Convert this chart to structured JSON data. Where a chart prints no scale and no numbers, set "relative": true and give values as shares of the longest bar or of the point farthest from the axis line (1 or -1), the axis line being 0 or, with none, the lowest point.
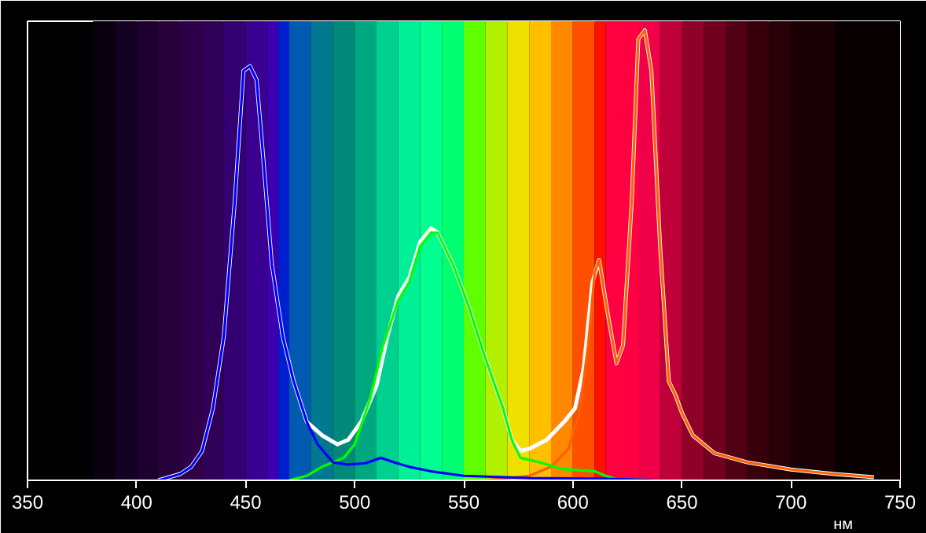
{
  "chart_data": {
    "type": "line",
    "relative": true,
    "xlabel": "нм",
    "xlim": [
      350,
      750
    ],
    "xticks": [
      350,
      400,
      450,
      500,
      550,
      600,
      650,
      700,
      750
    ],
    "grid": false,
    "line_style": "solid",
    "marker": "none",
    "series": [
      {
        "color": "#ffffff",
        "x": [
          410,
          420,
          425,
          430,
          435,
          440,
          445,
          449,
          452,
          455,
          458,
          462,
          467,
          472,
          478,
          485,
          492,
          497,
          503,
          510,
          515,
          520,
          525,
          530,
          535,
          538,
          545,
          552,
          560,
          568,
          572,
          576,
          580,
          588,
          596,
          601,
          605,
          609,
          612,
          616,
          620,
          623,
          627,
          630,
          633,
          636,
          640,
          644,
          647,
          650,
          655,
          665,
          680,
          700,
          720,
          738
        ],
        "values": [
          0,
          0.014,
          0.03,
          0.065,
          0.16,
          0.32,
          0.62,
          0.91,
          0.92,
          0.89,
          0.72,
          0.48,
          0.32,
          0.22,
          0.13,
          0.1,
          0.08,
          0.09,
          0.13,
          0.21,
          0.32,
          0.41,
          0.45,
          0.53,
          0.56,
          0.55,
          0.48,
          0.39,
          0.27,
          0.16,
          0.09,
          0.065,
          0.07,
          0.09,
          0.13,
          0.16,
          0.25,
          0.44,
          0.49,
          0.37,
          0.26,
          0.3,
          0.62,
          0.98,
          1.0,
          0.91,
          0.52,
          0.22,
          0.19,
          0.15,
          0.1,
          0.06,
          0.04,
          0.024,
          0.014,
          0.007
        ]
      },
      {
        "color": "#ff6000",
        "x": [
          560,
          580,
          590,
          598,
          603,
          607,
          610,
          612,
          616,
          620,
          623,
          627,
          630,
          633,
          636,
          640,
          644,
          647,
          650,
          655,
          665,
          680,
          700,
          720,
          738
        ],
        "values": [
          0,
          0.01,
          0.03,
          0.07,
          0.15,
          0.3,
          0.46,
          0.49,
          0.37,
          0.26,
          0.3,
          0.62,
          0.98,
          1.0,
          0.91,
          0.52,
          0.22,
          0.19,
          0.15,
          0.1,
          0.06,
          0.04,
          0.024,
          0.014,
          0.007
        ]
      },
      {
        "color": "#00ff00",
        "x": [
          470,
          478,
          485,
          495,
          500,
          507,
          513,
          520,
          525,
          530,
          535,
          538,
          545,
          552,
          560,
          568,
          572,
          576,
          585,
          595,
          610,
          615,
          620,
          640
        ],
        "values": [
          0,
          0.01,
          0.03,
          0.05,
          0.08,
          0.18,
          0.3,
          0.4,
          0.44,
          0.52,
          0.55,
          0.55,
          0.48,
          0.39,
          0.27,
          0.16,
          0.09,
          0.05,
          0.04,
          0.025,
          0.02,
          0.01,
          0.003,
          0
        ]
      },
      {
        "color": "#0000ff",
        "x": [
          410,
          420,
          425,
          430,
          435,
          440,
          445,
          449,
          452,
          455,
          458,
          462,
          467,
          472,
          478,
          483,
          490,
          497,
          505,
          512,
          518,
          525,
          535,
          550,
          580,
          620,
          640
        ],
        "values": [
          0,
          0.014,
          0.03,
          0.065,
          0.16,
          0.32,
          0.62,
          0.91,
          0.92,
          0.89,
          0.72,
          0.48,
          0.32,
          0.22,
          0.13,
          0.08,
          0.04,
          0.035,
          0.038,
          0.05,
          0.04,
          0.03,
          0.02,
          0.01,
          0.005,
          0.003,
          0
        ]
      }
    ],
    "bands": [
      {
        "axis": "x",
        "from": 380,
        "to": 390,
        "color": "#0a0010"
      },
      {
        "axis": "x",
        "from": 390,
        "to": 400,
        "color": "#140020"
      },
      {
        "axis": "x",
        "from": 400,
        "to": 410,
        "color": "#1e0030"
      },
      {
        "axis": "x",
        "from": 410,
        "to": 420,
        "color": "#28003c"
      },
      {
        "axis": "x",
        "from": 420,
        "to": 430,
        "color": "#2e0048"
      },
      {
        "axis": "x",
        "from": 430,
        "to": 440,
        "color": "#300058"
      },
      {
        "axis": "x",
        "from": 440,
        "to": 450,
        "color": "#320070"
      },
      {
        "axis": "x",
        "from": 450,
        "to": 460,
        "color": "#3a0090"
      },
      {
        "axis": "x",
        "from": 460,
        "to": 465,
        "color": "#3c00b0"
      },
      {
        "axis": "x",
        "from": 465,
        "to": 470,
        "color": "#0020d0"
      },
      {
        "axis": "x",
        "from": 470,
        "to": 480,
        "color": "#005ab0"
      },
      {
        "axis": "x",
        "from": 480,
        "to": 490,
        "color": "#007890"
      },
      {
        "axis": "x",
        "from": 490,
        "to": 500,
        "color": "#008878"
      },
      {
        "axis": "x",
        "from": 500,
        "to": 510,
        "color": "#00a880"
      },
      {
        "axis": "x",
        "from": 510,
        "to": 520,
        "color": "#00d090"
      },
      {
        "axis": "x",
        "from": 520,
        "to": 530,
        "color": "#00f098"
      },
      {
        "axis": "x",
        "from": 530,
        "to": 540,
        "color": "#00ff90"
      },
      {
        "axis": "x",
        "from": 540,
        "to": 550,
        "color": "#00ff70"
      },
      {
        "axis": "x",
        "from": 550,
        "to": 560,
        "color": "#60ff00"
      },
      {
        "axis": "x",
        "from": 560,
        "to": 570,
        "color": "#b0f000"
      },
      {
        "axis": "x",
        "from": 570,
        "to": 580,
        "color": "#f0e000"
      },
      {
        "axis": "x",
        "from": 580,
        "to": 590,
        "color": "#ffc000"
      },
      {
        "axis": "x",
        "from": 590,
        "to": 600,
        "color": "#ff8800"
      },
      {
        "axis": "x",
        "from": 600,
        "to": 610,
        "color": "#ff5000"
      },
      {
        "axis": "x",
        "from": 610,
        "to": 615,
        "color": "#ff1000"
      },
      {
        "axis": "x",
        "from": 615,
        "to": 630,
        "color": "#ff0040"
      },
      {
        "axis": "x",
        "from": 630,
        "to": 640,
        "color": "#f00048"
      },
      {
        "axis": "x",
        "from": 640,
        "to": 650,
        "color": "#c00038"
      },
      {
        "axis": "x",
        "from": 650,
        "to": 660,
        "color": "#900028"
      },
      {
        "axis": "x",
        "from": 660,
        "to": 670,
        "color": "#700020"
      },
      {
        "axis": "x",
        "from": 670,
        "to": 680,
        "color": "#500015"
      },
      {
        "axis": "x",
        "from": 680,
        "to": 690,
        "color": "#38000c"
      },
      {
        "axis": "x",
        "from": 690,
        "to": 700,
        "color": "#280008"
      },
      {
        "axis": "x",
        "from": 700,
        "to": 720,
        "color": "#180004"
      },
      {
        "axis": "x",
        "from": 720,
        "to": 750,
        "color": "#080000"
      }
    ]
  }
}
